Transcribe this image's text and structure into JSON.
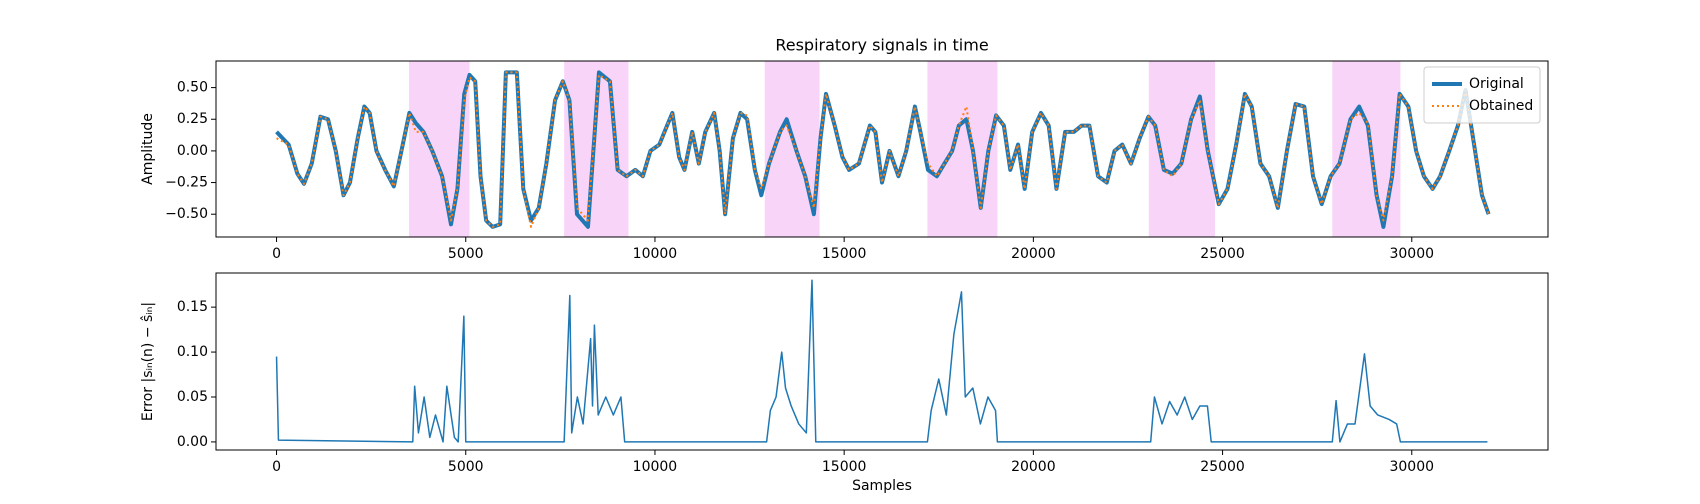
{
  "chart_data": [
    {
      "type": "line",
      "title": "Respiratory signals in time",
      "ylabel": "Amplitude",
      "xlim": [
        -1600,
        33600
      ],
      "ylim": [
        -0.68,
        0.71
      ],
      "xticks": [
        0,
        5000,
        10000,
        15000,
        20000,
        25000,
        30000
      ],
      "yticks": [
        {
          "value": -0.5,
          "label": "−0.50"
        },
        {
          "value": -0.25,
          "label": "−0.25"
        },
        {
          "value": 0,
          "label": "0.00"
        },
        {
          "value": 0.25,
          "label": "0.25"
        },
        {
          "value": 0.5,
          "label": "0.50"
        }
      ],
      "spans": [
        [
          3500,
          5100
        ],
        [
          7600,
          9300
        ],
        [
          12900,
          14350
        ],
        [
          17200,
          19050
        ],
        [
          23050,
          24800
        ],
        [
          27900,
          29700
        ]
      ],
      "span_color": "#f8d4f8",
      "legend": "upper right",
      "x": [
        0,
        320,
        550,
        725,
        930,
        1160,
        1360,
        1565,
        1770,
        1940,
        2145,
        2320,
        2460,
        2640,
        2870,
        3100,
        3300,
        3510,
        3680,
        3885,
        4115,
        4375,
        4610,
        4780,
        4960,
        5100,
        5250,
        5390,
        5540,
        5710,
        5910,
        6060,
        6350,
        6520,
        6725,
        6930,
        7130,
        7360,
        7565,
        7740,
        7940,
        8230,
        8520,
        8810,
        9015,
        9250,
        9480,
        9680,
        9880,
        10115,
        10320,
        10460,
        10640,
        10780,
        10985,
        11160,
        11330,
        11565,
        11710,
        11855,
        12060,
        12260,
        12435,
        12640,
        12810,
        13015,
        13305,
        13480,
        13740,
        13970,
        14200,
        14375,
        14520,
        14750,
        14955,
        15130,
        15390,
        15680,
        15825,
        16000,
        16200,
        16435,
        16640,
        16870,
        17015,
        17215,
        17450,
        17650,
        17855,
        18030,
        18230,
        18405,
        18610,
        18810,
        19015,
        19220,
        19390,
        19595,
        19770,
        19970,
        20200,
        20405,
        20610,
        20840,
        21070,
        21275,
        21480,
        21710,
        21940,
        22145,
        22350,
        22580,
        22810,
        23040,
        23220,
        23450,
        23680,
        23910,
        24170,
        24400,
        24610,
        24900,
        25130,
        25360,
        25590,
        25770,
        26000,
        26230,
        26460,
        26700,
        26930,
        27160,
        27390,
        27620,
        27855,
        28090,
        28380,
        28610,
        28840,
        29070,
        29250,
        29480,
        29680,
        29910,
        30115,
        30320,
        30550,
        30750,
        30990,
        31220,
        31420,
        31620,
        31855,
        32030
      ],
      "series": [
        {
          "name": "Original",
          "color": "#1f77b4",
          "style": "solid",
          "values": [
            0.15,
            0.05,
            -0.18,
            -0.26,
            -0.1,
            0.27,
            0.25,
            0.0,
            -0.35,
            -0.25,
            0.1,
            0.35,
            0.3,
            0.0,
            -0.15,
            -0.28,
            0.0,
            0.3,
            0.22,
            0.15,
            0.0,
            -0.2,
            -0.58,
            -0.3,
            0.45,
            0.6,
            0.55,
            -0.2,
            -0.55,
            -0.6,
            -0.58,
            0.62,
            0.62,
            -0.3,
            -0.55,
            -0.45,
            -0.1,
            0.4,
            0.55,
            0.4,
            -0.5,
            -0.6,
            0.62,
            0.55,
            -0.15,
            -0.2,
            -0.15,
            -0.2,
            0.0,
            0.05,
            0.2,
            0.3,
            -0.05,
            -0.15,
            0.15,
            -0.1,
            0.15,
            0.3,
            0.0,
            -0.5,
            0.1,
            0.3,
            0.25,
            -0.15,
            -0.35,
            -0.1,
            0.15,
            0.25,
            0.0,
            -0.2,
            -0.5,
            0.1,
            0.45,
            0.2,
            -0.05,
            -0.15,
            -0.1,
            0.2,
            0.15,
            -0.25,
            0.0,
            -0.2,
            0.0,
            0.35,
            0.15,
            -0.15,
            -0.2,
            -0.1,
            0.0,
            0.2,
            0.25,
            0.0,
            -0.45,
            0.0,
            0.28,
            0.2,
            -0.15,
            0.05,
            -0.3,
            0.15,
            0.3,
            0.2,
            -0.3,
            0.15,
            0.15,
            0.2,
            0.2,
            -0.2,
            -0.25,
            0.0,
            0.05,
            -0.1,
            0.1,
            0.27,
            0.2,
            -0.15,
            -0.18,
            -0.1,
            0.25,
            0.43,
            0.0,
            -0.42,
            -0.3,
            0.05,
            0.45,
            0.35,
            -0.1,
            -0.2,
            -0.45,
            0.0,
            0.37,
            0.35,
            -0.2,
            -0.42,
            -0.2,
            -0.1,
            0.25,
            0.35,
            0.2,
            -0.35,
            -0.6,
            -0.2,
            0.45,
            0.35,
            0.0,
            -0.2,
            -0.3,
            -0.2,
            0.0,
            0.2,
            0.48,
            0.1,
            -0.35,
            -0.5
          ]
        },
        {
          "name": "Obtained",
          "color": "#ff7f0e",
          "style": "dotted",
          "values": [
            0.1,
            0.05,
            -0.18,
            -0.26,
            -0.1,
            0.27,
            0.25,
            0.0,
            -0.35,
            -0.25,
            0.1,
            0.35,
            0.3,
            0.0,
            -0.15,
            -0.28,
            0.0,
            0.3,
            0.15,
            0.15,
            0.0,
            -0.2,
            -0.55,
            -0.3,
            0.4,
            0.58,
            0.55,
            -0.2,
            -0.55,
            -0.6,
            -0.58,
            0.62,
            0.62,
            -0.3,
            -0.6,
            -0.45,
            -0.1,
            0.4,
            0.55,
            0.4,
            -0.45,
            -0.55,
            0.6,
            0.55,
            -0.15,
            -0.2,
            -0.15,
            -0.2,
            0.0,
            0.05,
            0.2,
            0.3,
            -0.05,
            -0.15,
            0.15,
            -0.1,
            0.15,
            0.3,
            0.0,
            -0.5,
            0.1,
            0.3,
            0.28,
            -0.15,
            -0.3,
            -0.1,
            0.15,
            0.2,
            0.0,
            -0.2,
            -0.45,
            0.1,
            0.45,
            0.2,
            -0.05,
            -0.15,
            -0.1,
            0.2,
            0.15,
            -0.25,
            0.0,
            -0.2,
            0.0,
            0.35,
            0.15,
            -0.1,
            -0.2,
            -0.1,
            0.0,
            0.2,
            0.35,
            0.0,
            -0.45,
            0.0,
            0.28,
            0.2,
            -0.15,
            0.05,
            -0.3,
            0.15,
            0.3,
            0.2,
            -0.3,
            0.15,
            0.15,
            0.2,
            0.2,
            -0.2,
            -0.25,
            0.0,
            0.05,
            -0.1,
            0.1,
            0.27,
            0.2,
            -0.15,
            -0.2,
            -0.1,
            0.25,
            0.4,
            0.0,
            -0.42,
            -0.3,
            0.05,
            0.45,
            0.35,
            -0.1,
            -0.2,
            -0.45,
            0.0,
            0.37,
            0.35,
            -0.2,
            -0.42,
            -0.2,
            -0.1,
            0.25,
            0.3,
            0.22,
            -0.35,
            -0.55,
            -0.2,
            0.45,
            0.35,
            0.0,
            -0.2,
            -0.3,
            -0.2,
            0.0,
            0.2,
            0.48,
            0.1,
            -0.35,
            -0.5
          ]
        }
      ]
    },
    {
      "type": "line",
      "xlabel": "Samples",
      "ylabel": "Error |sᵢₙ(n) − ŝᵢₙ|",
      "xlim": [
        -1600,
        33600
      ],
      "ylim": [
        -0.009,
        0.188
      ],
      "xticks": [
        0,
        5000,
        10000,
        15000,
        20000,
        25000,
        30000
      ],
      "yticks": [
        {
          "value": 0,
          "label": "0.00"
        },
        {
          "value": 0.05,
          "label": "0.05"
        },
        {
          "value": 0.1,
          "label": "0.10"
        },
        {
          "value": 0.15,
          "label": "0.15"
        }
      ],
      "x": [
        0,
        50,
        3600,
        3650,
        3750,
        3900,
        4050,
        4200,
        4400,
        4500,
        4700,
        4800,
        4950,
        5000,
        7600,
        7750,
        7800,
        7950,
        8100,
        8300,
        8350,
        8400,
        8500,
        8700,
        8900,
        9100,
        9200,
        12950,
        13050,
        13200,
        13350,
        13450,
        13600,
        13800,
        14000,
        14150,
        14250,
        17200,
        17300,
        17500,
        17700,
        17900,
        18100,
        18200,
        18400,
        18600,
        18800,
        19000,
        19050,
        23100,
        23200,
        23400,
        23600,
        23800,
        24000,
        24200,
        24400,
        24600,
        24700,
        27900,
        28000,
        28100,
        28300,
        28500,
        28750,
        28900,
        29100,
        29400,
        29600,
        29700,
        32000
      ],
      "series": [
        {
          "color": "#1f77b4",
          "style": "thin",
          "values": [
            0.095,
            0.002,
            0,
            0.062,
            0.01,
            0.05,
            0.005,
            0.03,
            0,
            0.062,
            0.005,
            0,
            0.14,
            0,
            0,
            0.163,
            0.01,
            0.05,
            0.02,
            0.115,
            0.04,
            0.13,
            0.03,
            0.05,
            0.03,
            0.05,
            0,
            0,
            0.035,
            0.05,
            0.1,
            0.06,
            0.04,
            0.02,
            0.01,
            0.18,
            0,
            0,
            0.035,
            0.07,
            0.03,
            0.12,
            0.167,
            0.05,
            0.06,
            0.02,
            0.05,
            0.035,
            0,
            0,
            0.05,
            0.02,
            0.045,
            0.03,
            0.05,
            0.025,
            0.04,
            0.04,
            0,
            0,
            0.046,
            0,
            0.02,
            0.02,
            0.098,
            0.04,
            0.03,
            0.025,
            0.02,
            0,
            0
          ]
        }
      ]
    }
  ]
}
